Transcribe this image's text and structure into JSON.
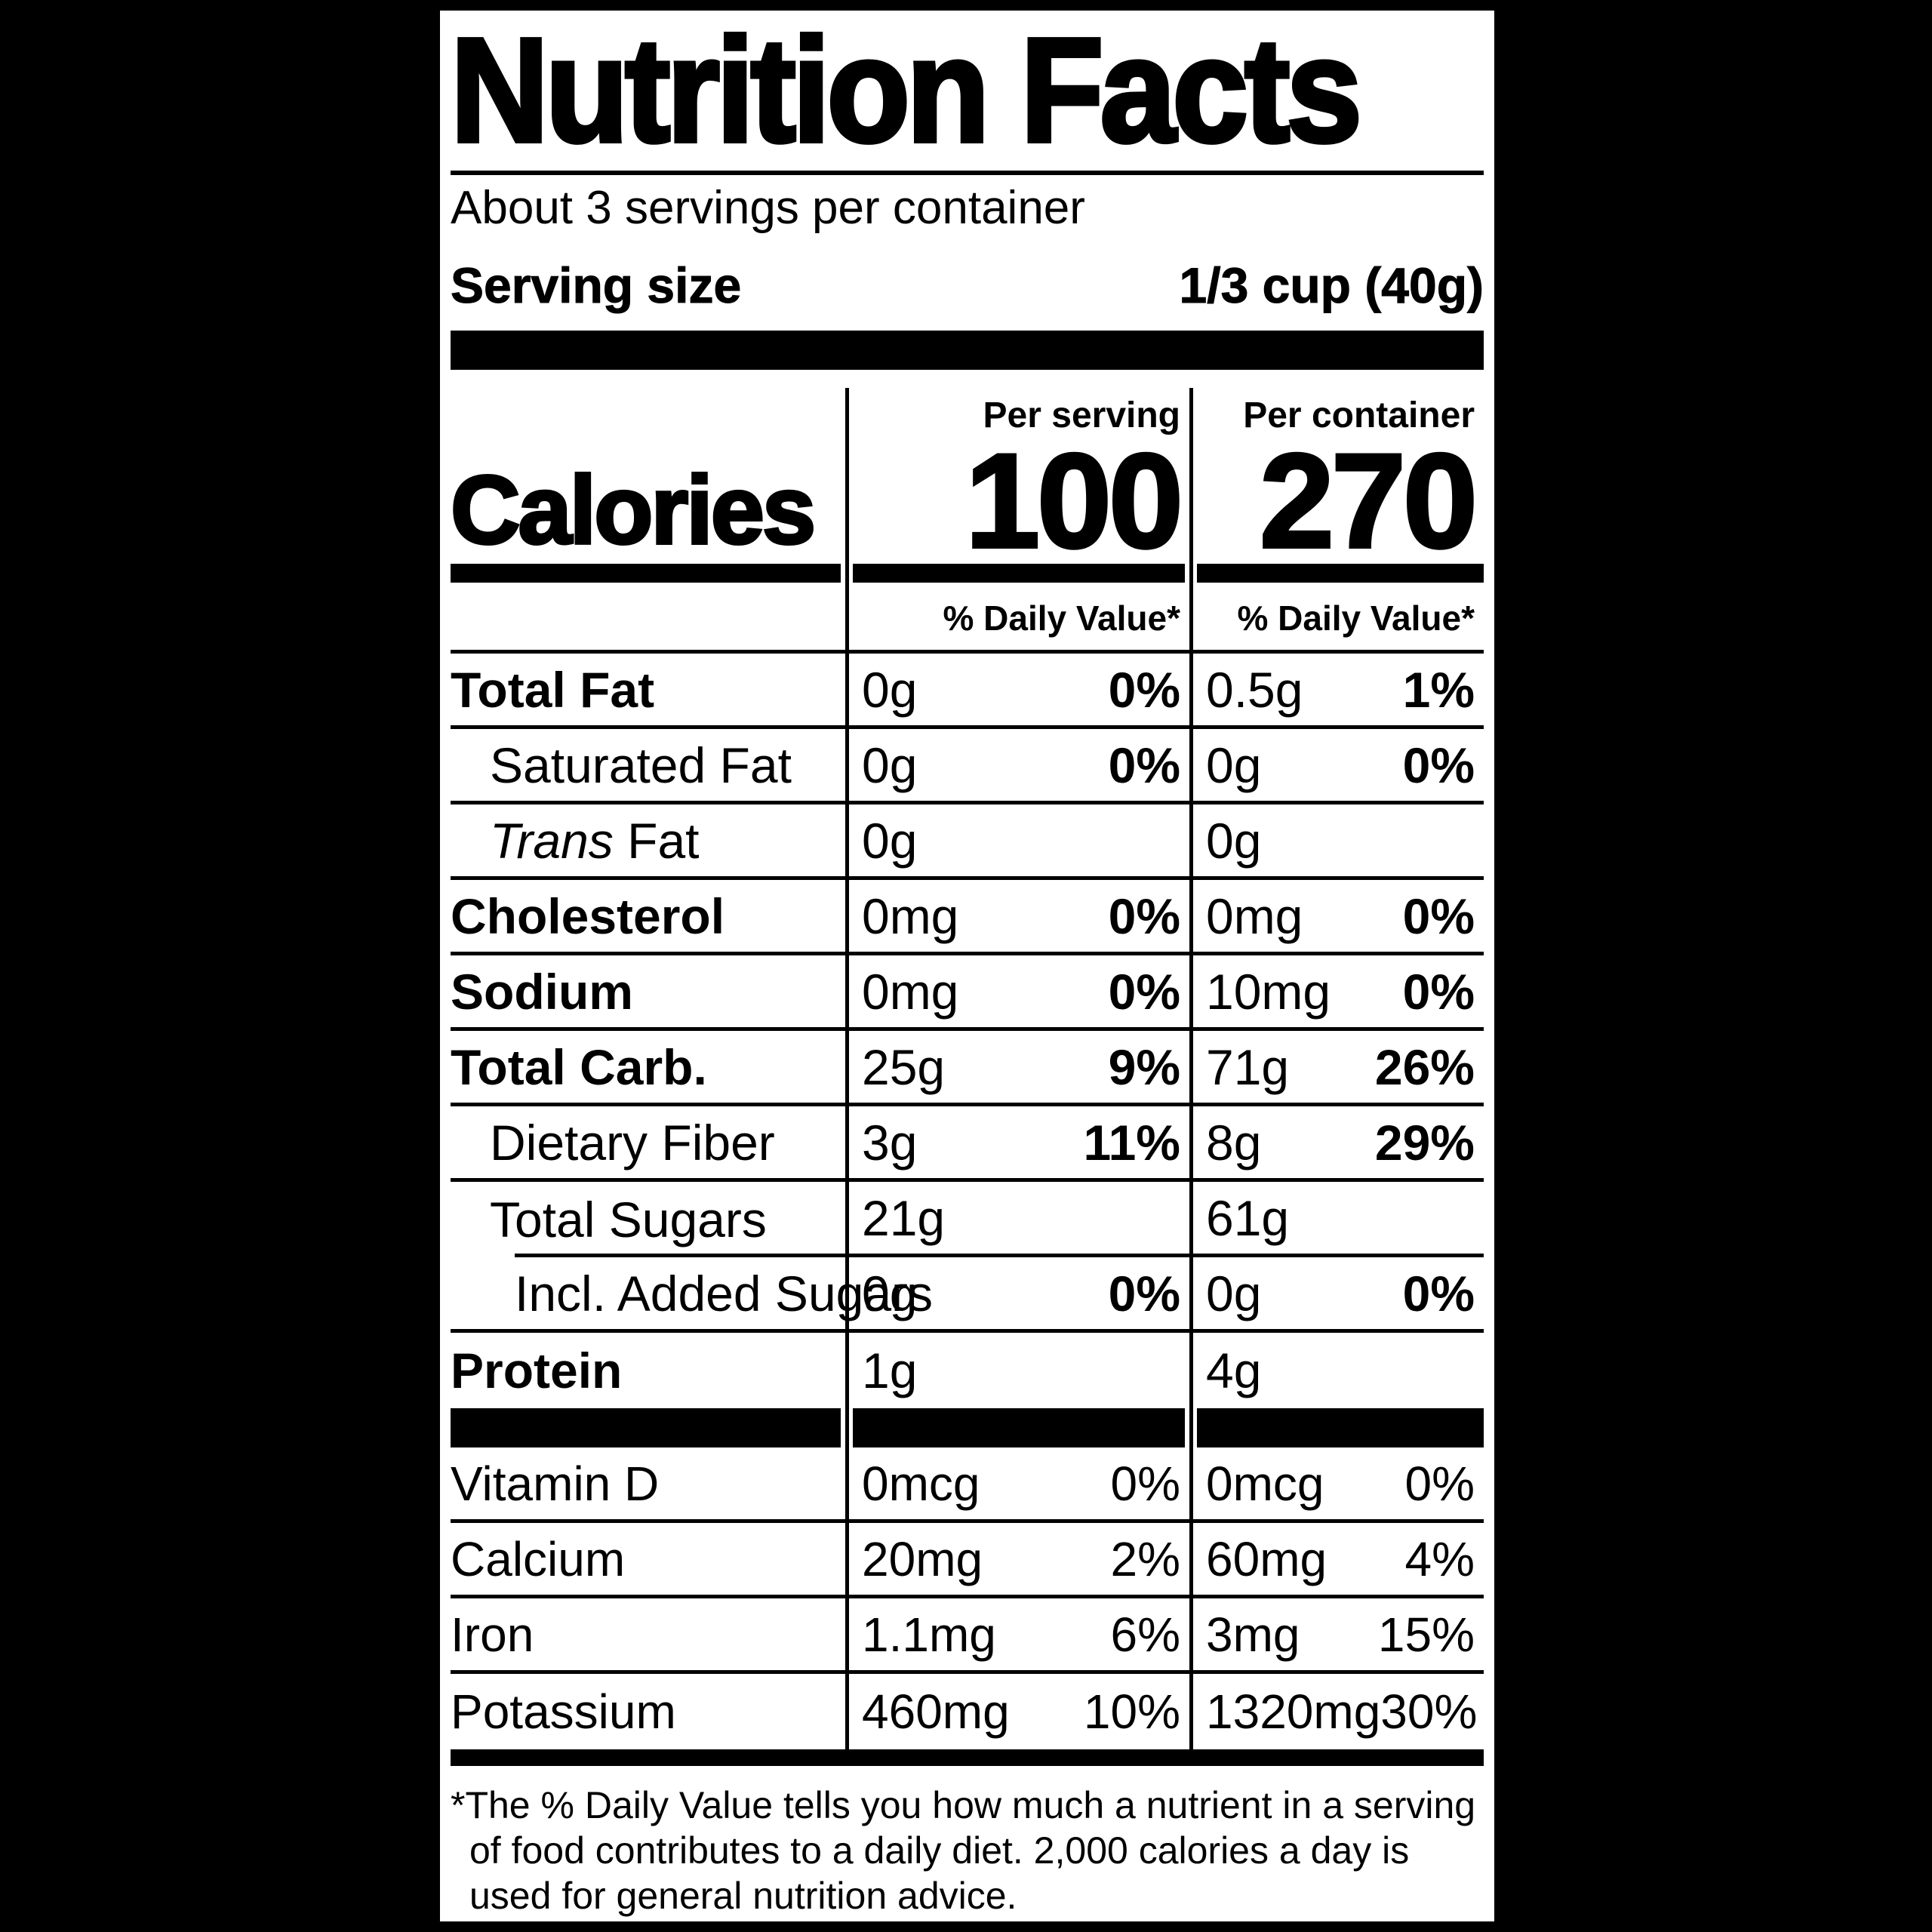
{
  "page": {
    "background": "#000000",
    "paper": "#ffffff",
    "ink": "#000000"
  },
  "label": {
    "title": "Nutrition Facts",
    "servings_per_container": "About 3 servings per container",
    "serving_size_label": "Serving size",
    "serving_size_value": "1/3 cup (40g)",
    "calories_label": "Calories",
    "per_serving_header": "Per serving",
    "per_container_header": "Per container",
    "calories_per_serving": "100",
    "calories_per_container": "270",
    "daily_value_header": "% Daily Value*",
    "nutrients": [
      {
        "name": "Total Fat",
        "serving_amount": "0g",
        "serving_dv": "0%",
        "container_amount": "0.5g",
        "container_dv": "1%"
      },
      {
        "name": "Saturated Fat",
        "serving_amount": "0g",
        "serving_dv": "0%",
        "container_amount": "0g",
        "container_dv": "0%"
      },
      {
        "name_italic": "Trans",
        "name_suffix": " Fat",
        "serving_amount": "0g",
        "serving_dv": "",
        "container_amount": "0g",
        "container_dv": ""
      },
      {
        "name": "Cholesterol",
        "serving_amount": "0mg",
        "serving_dv": "0%",
        "container_amount": "0mg",
        "container_dv": "0%"
      },
      {
        "name": "Sodium",
        "serving_amount": "0mg",
        "serving_dv": "0%",
        "container_amount": "10mg",
        "container_dv": "0%"
      },
      {
        "name": "Total Carb.",
        "serving_amount": "25g",
        "serving_dv": "9%",
        "container_amount": "71g",
        "container_dv": "26%"
      },
      {
        "name": "Dietary Fiber",
        "serving_amount": "3g",
        "serving_dv": "11%",
        "container_amount": "8g",
        "container_dv": "29%"
      },
      {
        "name": "Total Sugars",
        "serving_amount": "21g",
        "serving_dv": "",
        "container_amount": "61g",
        "container_dv": ""
      },
      {
        "name": "Incl. Added Sugars",
        "serving_amount": "0g",
        "serving_dv": "0%",
        "container_amount": "0g",
        "container_dv": "0%"
      },
      {
        "name": "Protein",
        "serving_amount": "1g",
        "serving_dv": "",
        "container_amount": "4g",
        "container_dv": ""
      }
    ],
    "micronutrients": [
      {
        "name": "Vitamin D",
        "serving_amount": "0mcg",
        "serving_dv": "0%",
        "container_amount": "0mcg",
        "container_dv": "0%"
      },
      {
        "name": "Calcium",
        "serving_amount": "20mg",
        "serving_dv": "2%",
        "container_amount": "60mg",
        "container_dv": "4%"
      },
      {
        "name": "Iron",
        "serving_amount": "1.1mg",
        "serving_dv": "6%",
        "container_amount": "3mg",
        "container_dv": "15%"
      },
      {
        "name": "Potassium",
        "serving_amount": "460mg",
        "serving_dv": "10%",
        "container_amount": "1320mg",
        "container_dv": "30%"
      }
    ],
    "footnote": "*The % Daily Value tells you how much a nutrient in a serving of food contributes to a daily diet. 2,000 calories a day is used for general nutrition advice."
  }
}
